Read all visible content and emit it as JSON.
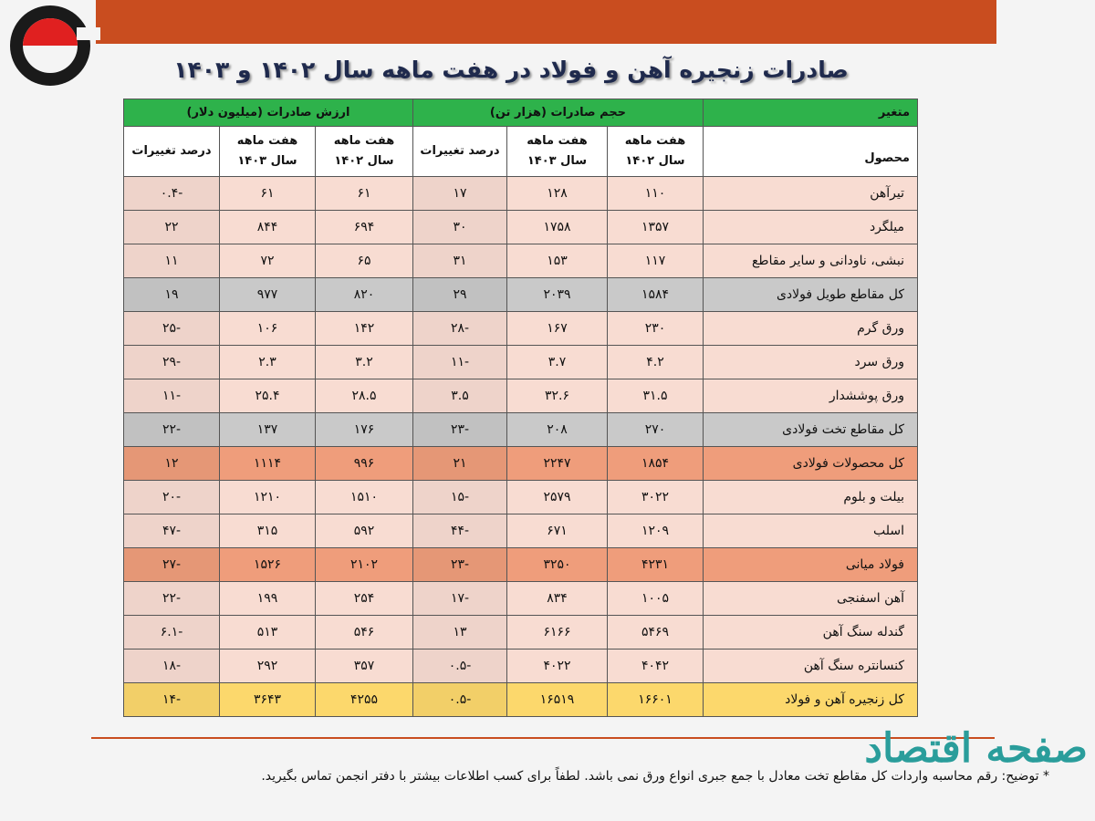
{
  "title": "صادرات زنجیره آهن و فولاد در هفت ماهه سال ۱۴۰۲ و ۱۴۰۳",
  "table": {
    "corner_top": "متغیر",
    "corner_bottom": "محصول",
    "groups": [
      "حجم صادرات (هزار تن)",
      "ارزش صادرات (میلیون دلار)"
    ],
    "subheaders": [
      [
        "هفت ماهه",
        "سال ۱۴۰۲"
      ],
      [
        "هفت ماهه",
        "سال ۱۴۰۳"
      ],
      [
        "درصد تغییرات"
      ],
      [
        "هفت ماهه",
        "سال ۱۴۰۲"
      ],
      [
        "هفت ماهه",
        "سال ۱۴۰۳"
      ],
      [
        "درصد تغییرات"
      ]
    ],
    "rows": [
      {
        "color": "#f8dcd2",
        "cells": [
          "تیرآهن",
          "۱۱۰",
          "۱۲۸",
          "۱۷",
          "۶۱",
          "۶۱",
          "۰.۴-"
        ]
      },
      {
        "color": "#f8dcd2",
        "cells": [
          "میلگرد",
          "۱۳۵۷",
          "۱۷۵۸",
          "۳۰",
          "۶۹۴",
          "۸۴۴",
          "۲۲"
        ]
      },
      {
        "color": "#f8dcd2",
        "cells": [
          "نبشی، ناودانی و سایر مقاطع",
          "۱۱۷",
          "۱۵۳",
          "۳۱",
          "۶۵",
          "۷۲",
          "۱۱"
        ]
      },
      {
        "color": "#c9c9c9",
        "cells": [
          "کل مقاطع طویل فولادی",
          "۱۵۸۴",
          "۲۰۳۹",
          "۲۹",
          "۸۲۰",
          "۹۷۷",
          "۱۹"
        ]
      },
      {
        "color": "#f8dcd2",
        "cells": [
          "ورق گرم",
          "۲۳۰",
          "۱۶۷",
          "۲۸-",
          "۱۴۲",
          "۱۰۶",
          "۲۵-"
        ]
      },
      {
        "color": "#f8dcd2",
        "cells": [
          "ورق سرد",
          "۴.۲",
          "۳.۷",
          "۱۱-",
          "۳.۲",
          "۲.۳",
          "۲۹-"
        ]
      },
      {
        "color": "#f8dcd2",
        "cells": [
          "ورق پوششدار",
          "۳۱.۵",
          "۳۲.۶",
          "۳.۵",
          "۲۸.۵",
          "۲۵.۴",
          "۱۱-"
        ]
      },
      {
        "color": "#c9c9c9",
        "cells": [
          "کل مقاطع تخت فولادی",
          "۲۷۰",
          "۲۰۸",
          "۲۳-",
          "۱۷۶",
          "۱۳۷",
          "۲۲-"
        ]
      },
      {
        "color": "#ef9d7b",
        "cells": [
          "کل محصولات فولادی",
          "۱۸۵۴",
          "۲۲۴۷",
          "۲۱",
          "۹۹۶",
          "۱۱۱۴",
          "۱۲"
        ]
      },
      {
        "color": "#f8dcd2",
        "cells": [
          "بیلت و بلوم",
          "۳۰۲۲",
          "۲۵۷۹",
          "۱۵-",
          "۱۵۱۰",
          "۱۲۱۰",
          "۲۰-"
        ]
      },
      {
        "color": "#f8dcd2",
        "cells": [
          "اسلب",
          "۱۲۰۹",
          "۶۷۱",
          "۴۴-",
          "۵۹۲",
          "۳۱۵",
          "۴۷-"
        ]
      },
      {
        "color": "#ef9d7b",
        "cells": [
          "فولاد میانی",
          "۴۲۳۱",
          "۳۲۵۰",
          "۲۳-",
          "۲۱۰۲",
          "۱۵۲۶",
          "۲۷-"
        ]
      },
      {
        "color": "#f8dcd2",
        "cells": [
          "آهن اسفنجی",
          "۱۰۰۵",
          "۸۳۴",
          "۱۷-",
          "۲۵۴",
          "۱۹۹",
          "۲۲-"
        ]
      },
      {
        "color": "#f8dcd2",
        "cells": [
          "گندله سنگ آهن",
          "۵۴۶۹",
          "۶۱۶۶",
          "۱۳",
          "۵۴۶",
          "۵۱۳",
          "۶.۱-"
        ]
      },
      {
        "color": "#f8dcd2",
        "cells": [
          "کنسانتره سنگ آهن",
          "۴۰۴۲",
          "۴۰۲۲",
          "۰.۵-",
          "۳۵۷",
          "۲۹۲",
          "۱۸-"
        ]
      },
      {
        "color": "#fcd86c",
        "cells": [
          "کل زنجیره آهن و فولاد",
          "۱۶۶۰۱",
          "۱۶۵۱۹",
          "۰.۵-",
          "۴۲۵۵",
          "۳۶۴۳",
          "۱۴-"
        ]
      }
    ]
  },
  "footnote": "* توضیح: رقم محاسبه واردات کل مقاطع تخت معادل با جمع جبری انواع ورق نمی باشد. لطفاً برای کسب اطلاعات بیشتر با دفتر انجمن تماس بگیرید.",
  "watermark": "صفحه اقتصاد"
}
